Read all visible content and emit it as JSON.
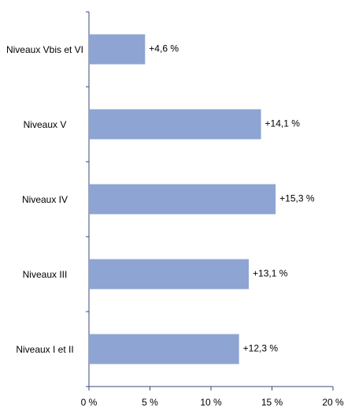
{
  "chart_data": {
    "type": "barh",
    "categories": [
      "Niveaux Vbis et VI",
      "Niveaux V",
      "Niveaux IV",
      "Niveaux III",
      "Niveaux I et II"
    ],
    "values": [
      4.6,
      14.1,
      15.3,
      13.1,
      12.3
    ],
    "value_labels": [
      "+4,6 %",
      "+14,1 %",
      "+15,3 %",
      "+13,1 %",
      "+12,3 %"
    ],
    "color": "#8ea4d3",
    "xlim": [
      0,
      20
    ],
    "xticks": [
      {
        "value": 0,
        "label": "0 %"
      },
      {
        "value": 5,
        "label": "5 %"
      },
      {
        "value": 10,
        "label": "10 %"
      },
      {
        "value": 15,
        "label": "15 %"
      },
      {
        "value": 20,
        "label": "20 %"
      }
    ]
  }
}
